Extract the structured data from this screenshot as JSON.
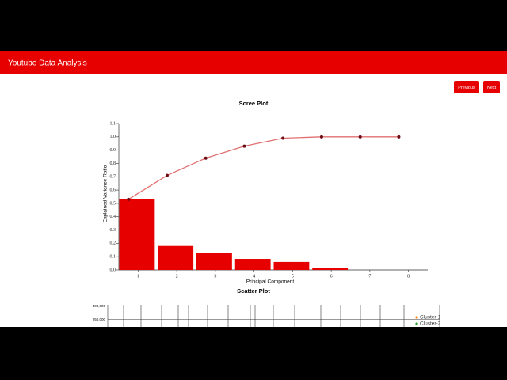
{
  "header": {
    "title": "Youtube Data Analysis"
  },
  "buttons": [
    "Previous",
    "Next"
  ],
  "scree_plot": {
    "type": "bar_line",
    "title": "Scree Plot",
    "x_label": "Principal Component",
    "y_label": "Explained Variance Ratio",
    "x": [
      1,
      2,
      3,
      4,
      5,
      6,
      7,
      8
    ],
    "values": [
      0.53,
      0.18,
      0.125,
      0.083,
      0.06,
      0.012,
      0,
      0
    ],
    "cumulative_values": [
      0.53,
      0.71,
      0.84,
      0.93,
      0.99,
      1.0,
      1.0,
      1.0
    ],
    "bar_color": "#e60000",
    "line_color": "#e07070",
    "point_color": "#6e0a14",
    "xlim": [
      0.5,
      8.5
    ],
    "xticks": [
      1,
      2,
      3,
      4,
      5,
      6,
      7,
      8
    ],
    "ylim": [
      0,
      1.1
    ],
    "yticks": [
      {
        "value": 0,
        "label": "0.0"
      },
      0.1,
      0.2,
      0.3,
      0.4,
      0.5,
      0.6,
      0.7,
      0.8,
      0.9,
      {
        "value": 1,
        "label": "1.0"
      },
      1.1
    ]
  },
  "scatter_plot": {
    "title": "Scatter Plot",
    "ylim": [
      0,
      305000
    ],
    "yticks": [
      {
        "value": 250000,
        "label": "250,000"
      },
      {
        "value": 300000,
        "label": "300,000"
      }
    ],
    "series": [
      {
        "name": "Cluster-1",
        "color": "#ff7f0e"
      },
      {
        "name": "Cluster-2",
        "color": "#2ca02c"
      }
    ]
  }
}
